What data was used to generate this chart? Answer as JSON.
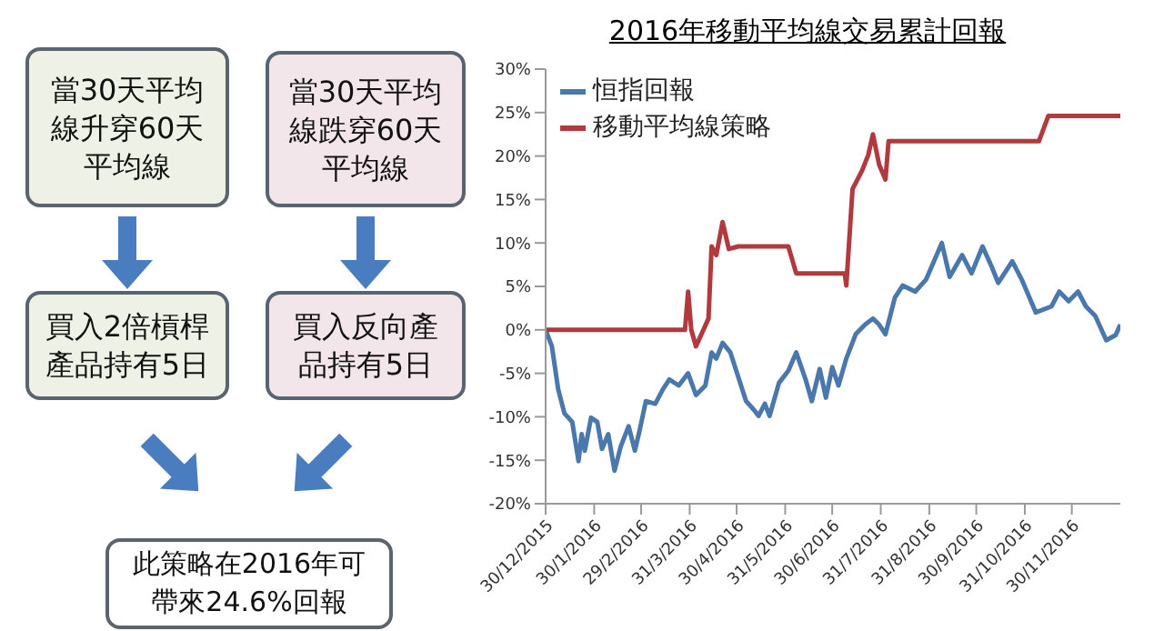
{
  "chart_data": [
    {
      "type": "other",
      "annotations": [
        "當30天平均線升穿60天平均線",
        "當30天平均線跌穿60天平均線",
        "買入2倍槓桿產品持有5日",
        "買入反向產品持有5日",
        "此策略在2016年可帶來24.6%回報"
      ]
    },
    {
      "type": "line",
      "title": "2016年移動平均線交易累計回報",
      "legend": "top left",
      "grid": false,
      "marker": "none",
      "line_style": "solid",
      "xlim": [
        "2015-12-30",
        "2016-12-31"
      ],
      "xticks": [
        {
          "value": "2015-12-30",
          "label": "30/12/2015"
        },
        {
          "value": "2016-01-30",
          "label": "30/1/2016"
        },
        {
          "value": "2016-02-29",
          "label": "29/2/2016"
        },
        {
          "value": "2016-03-31",
          "label": "31/3/2016"
        },
        {
          "value": "2016-04-30",
          "label": "30/4/2016"
        },
        {
          "value": "2016-05-31",
          "label": "31/5/2016"
        },
        {
          "value": "2016-06-30",
          "label": "30/6/2016"
        },
        {
          "value": "2016-07-31",
          "label": "31/7/2016"
        },
        {
          "value": "2016-08-31",
          "label": "31/8/2016"
        },
        {
          "value": "2016-09-30",
          "label": "30/9/2016"
        },
        {
          "value": "2016-10-31",
          "label": "31/10/2016"
        },
        {
          "value": "2016-11-30",
          "label": "30/11/2016"
        }
      ],
      "ylim": [
        -20,
        30
      ],
      "yticks": [
        {
          "value": -20,
          "label": "-20%"
        },
        {
          "value": -15,
          "label": "-15%"
        },
        {
          "value": -10,
          "label": "-10%"
        },
        {
          "value": -5,
          "label": "-5%"
        },
        {
          "value": 0,
          "label": "0%"
        },
        {
          "value": 5,
          "label": "5%"
        },
        {
          "value": 10,
          "label": "10%"
        },
        {
          "value": 15,
          "label": "15%"
        },
        {
          "value": 20,
          "label": "20%"
        },
        {
          "value": 25,
          "label": "25%"
        },
        {
          "value": 30,
          "label": "30%"
        }
      ],
      "series": [
        {
          "name": "恒指回報",
          "color": "#4a78ad",
          "x": [
            "2015-12-30",
            "2016-01-03",
            "2016-01-07",
            "2016-01-11",
            "2016-01-16",
            "2016-01-20",
            "2016-01-22",
            "2016-01-24",
            "2016-01-28",
            "2016-02-01",
            "2016-02-04",
            "2016-02-08",
            "2016-02-12",
            "2016-02-16",
            "2016-02-21",
            "2016-02-25",
            "2016-02-28",
            "2016-03-03",
            "2016-03-09",
            "2016-03-14",
            "2016-03-18",
            "2016-03-24",
            "2016-03-30",
            "2016-04-04",
            "2016-04-10",
            "2016-04-14",
            "2016-04-17",
            "2016-04-21",
            "2016-04-26",
            "2016-05-01",
            "2016-05-06",
            "2016-05-11",
            "2016-05-14",
            "2016-05-18",
            "2016-05-21",
            "2016-05-27",
            "2016-06-02",
            "2016-06-07",
            "2016-06-13",
            "2016-06-17",
            "2016-06-22",
            "2016-06-26",
            "2016-06-30",
            "2016-07-04",
            "2016-07-09",
            "2016-07-15",
            "2016-07-21",
            "2016-07-26",
            "2016-07-30",
            "2016-08-03",
            "2016-08-09",
            "2016-08-14",
            "2016-08-22",
            "2016-08-29",
            "2016-09-08",
            "2016-09-13",
            "2016-09-21",
            "2016-09-27",
            "2016-10-04",
            "2016-10-10",
            "2016-10-14",
            "2016-10-23",
            "2016-10-29",
            "2016-11-03",
            "2016-11-07",
            "2016-11-17",
            "2016-11-22",
            "2016-11-28",
            "2016-12-04",
            "2016-12-09",
            "2016-12-15",
            "2016-12-22",
            "2016-12-28",
            "2016-12-31"
          ],
          "values": [
            0,
            -1.9,
            -6.8,
            -9.6,
            -10.6,
            -15.1,
            -12,
            -13.9,
            -10.1,
            -10.6,
            -13.7,
            -12,
            -16.2,
            -13.4,
            -11.1,
            -13.9,
            -11.6,
            -8.2,
            -8.5,
            -6.8,
            -5.7,
            -6.4,
            -5,
            -7.5,
            -6.4,
            -2.6,
            -3.3,
            -1.5,
            -2.6,
            -5.4,
            -8.2,
            -9.2,
            -9.9,
            -8.5,
            -9.9,
            -6.1,
            -4.7,
            -2.6,
            -5.7,
            -8.2,
            -4.5,
            -7.8,
            -4.3,
            -6.4,
            -3.3,
            -0.5,
            0.6,
            1.3,
            0.6,
            -0.5,
            3.7,
            5.1,
            4.4,
            5.8,
            10,
            6.1,
            8.6,
            6.5,
            9.6,
            7.2,
            5.4,
            7.9,
            5.8,
            3.7,
            2,
            2.7,
            4.4,
            3.3,
            4.4,
            2.7,
            1.6,
            -1.2,
            -0.6,
            0.6
          ]
        },
        {
          "name": "移動平均線策略",
          "color": "#b03a3e",
          "x": [
            "2015-12-30",
            "2016-03-28",
            "2016-03-30",
            "2016-04-01",
            "2016-04-04",
            "2016-04-12",
            "2016-04-14",
            "2016-04-17",
            "2016-04-21",
            "2016-04-25",
            "2016-05-01",
            "2016-06-02",
            "2016-06-07",
            "2016-07-08",
            "2016-07-09",
            "2016-07-13",
            "2016-07-19",
            "2016-07-23",
            "2016-07-26",
            "2016-07-30",
            "2016-08-03",
            "2016-08-05",
            "2016-11-09",
            "2016-11-15",
            "2016-12-31"
          ],
          "values": [
            0,
            0,
            4.4,
            0,
            -1.9,
            1.3,
            9.6,
            8.6,
            12.4,
            9.3,
            9.6,
            9.6,
            6.5,
            6.5,
            5.1,
            16.2,
            18.3,
            20.1,
            22.5,
            19,
            17.3,
            21.7,
            21.7,
            24.6,
            24.6
          ]
        }
      ]
    }
  ]
}
